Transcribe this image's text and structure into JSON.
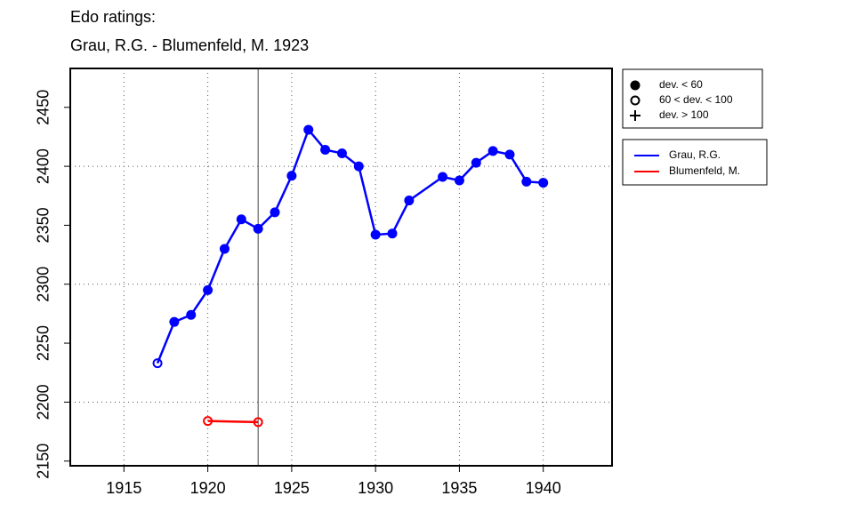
{
  "chart_data": {
    "type": "line",
    "title": "Edo ratings:",
    "subtitle": "Grau, R.G. - Blumenfeld, M. 1923",
    "xlim": [
      1911.8,
      1944.1
    ],
    "xticks": [
      1915,
      1920,
      1925,
      1930,
      1935,
      1940
    ],
    "ylim": [
      2146,
      2483
    ],
    "yticks": [
      2150,
      2200,
      2250,
      2300,
      2350,
      2400,
      2450
    ],
    "xgrid": [
      1915,
      1920,
      1925,
      1930,
      1935,
      1940
    ],
    "ygrid": [
      2200,
      2300,
      2400
    ],
    "vline": 1923,
    "marker_legend": [
      {
        "label": "dev. < 60",
        "symbol": "filled"
      },
      {
        "label": "60 < dev. < 100",
        "symbol": "open"
      },
      {
        "label": "dev. > 100",
        "symbol": "plus"
      }
    ],
    "series": [
      {
        "name": "Grau, R.G.",
        "color": "#0000ff",
        "x": [
          1917,
          1918,
          1919,
          1920,
          1921,
          1922,
          1923,
          1924,
          1925,
          1926,
          1927,
          1928,
          1929,
          1930,
          1931,
          1932,
          1934,
          1935,
          1936,
          1937,
          1938,
          1939,
          1940
        ],
        "values": [
          2233,
          2268,
          2274,
          2295,
          2330,
          2355,
          2347,
          2361,
          2392,
          2431,
          2414,
          2411,
          2400,
          2342,
          2343,
          2371,
          2391,
          2388,
          2403,
          2413,
          2410,
          2387,
          2386
        ],
        "markers": [
          "open",
          "filled",
          "filled",
          "filled",
          "filled",
          "filled",
          "filled",
          "filled",
          "filled",
          "filled",
          "filled",
          "filled",
          "filled",
          "filled",
          "filled",
          "filled",
          "filled",
          "filled",
          "filled",
          "filled",
          "filled",
          "filled",
          "filled"
        ]
      },
      {
        "name": "Blumenfeld, M.",
        "color": "#ff0000",
        "x": [
          1920,
          1923
        ],
        "values": [
          2184,
          2183
        ],
        "markers": [
          "open",
          "open"
        ]
      }
    ]
  }
}
